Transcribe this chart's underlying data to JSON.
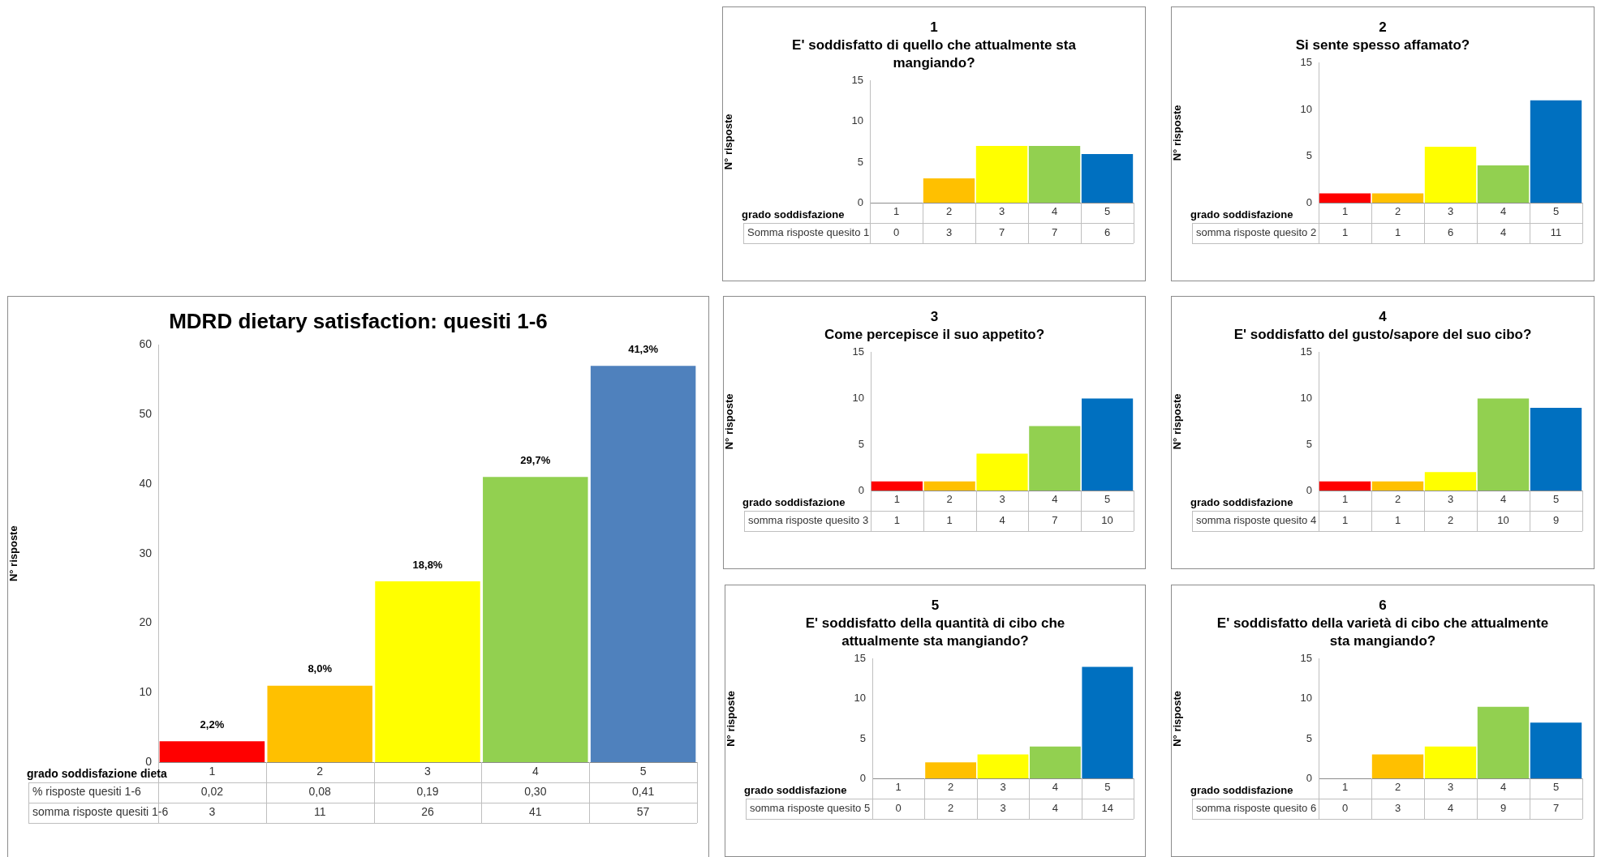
{
  "chart_data": [
    {
      "type": "bar",
      "title": "1",
      "subtitle": "E' soddisfatto di quello che attualmente sta mangiando?",
      "xlabel": "grado soddisfazione",
      "ylabel": "N° risposte",
      "categories": [
        "1",
        "2",
        "3",
        "4",
        "5"
      ],
      "colors": [
        "#ff0000",
        "#ffc000",
        "#ffff00",
        "#92d050",
        "#0070c0"
      ],
      "series": [
        {
          "name": "Somma risposte quesito 1",
          "values": [
            0,
            3,
            7,
            7,
            6
          ]
        }
      ],
      "ylim": [
        0,
        15
      ],
      "yticks": [
        0,
        5,
        10,
        15
      ],
      "data_labels": true
    },
    {
      "type": "bar",
      "title": "2",
      "subtitle": "Si sente spesso affamato?",
      "xlabel": "grado soddisfazione",
      "ylabel": "N° risposte",
      "categories": [
        "1",
        "2",
        "3",
        "4",
        "5"
      ],
      "colors": [
        "#ff0000",
        "#ffc000",
        "#ffff00",
        "#92d050",
        "#0070c0"
      ],
      "series": [
        {
          "name": "somma risposte quesito 2",
          "values": [
            1,
            1,
            6,
            4,
            11
          ]
        }
      ],
      "ylim": [
        0,
        15
      ],
      "yticks": [
        0,
        5,
        10,
        15
      ],
      "data_labels": true
    },
    {
      "type": "bar",
      "title": "MDRD dietary satisfaction: quesiti 1-6",
      "xlabel": "grado soddisfazione dieta",
      "ylabel": "N° risposte",
      "categories": [
        "1",
        "2",
        "3",
        "4",
        "5"
      ],
      "colors": [
        "#ff0000",
        "#ffc000",
        "#ffff00",
        "#92d050",
        "#4f81bd"
      ],
      "series": [
        {
          "name": "somma risposte quesiti 1-6",
          "values": [
            3,
            11,
            26,
            41,
            57
          ]
        }
      ],
      "ylim": [
        0,
        60
      ],
      "yticks": [
        0,
        10,
        20,
        30,
        40,
        50,
        60
      ],
      "data_labels": true,
      "annotations": [
        "% risposte quesiti 1-6",
        "0,02",
        "0,08",
        "0,19",
        "0,30",
        "0,41",
        {
          "text": "2,2%",
          "x": "1",
          "y": 3
        },
        {
          "text": "8,0%",
          "x": "2",
          "y": 11
        },
        {
          "text": "18,8%",
          "x": "3",
          "y": 26
        },
        {
          "text": "29,7%",
          "x": "4",
          "y": 41
        },
        {
          "text": "41,3%",
          "x": "5",
          "y": 57
        }
      ]
    },
    {
      "type": "bar",
      "title": "3",
      "subtitle": "Come percepisce il suo appetito?",
      "xlabel": "grado soddisfazione",
      "ylabel": "N° risposte",
      "categories": [
        "1",
        "2",
        "3",
        "4",
        "5"
      ],
      "colors": [
        "#ff0000",
        "#ffc000",
        "#ffff00",
        "#92d050",
        "#0070c0"
      ],
      "series": [
        {
          "name": "somma risposte quesito 3",
          "values": [
            1,
            1,
            4,
            7,
            10
          ]
        }
      ],
      "ylim": [
        0,
        15
      ],
      "yticks": [
        0,
        5,
        10,
        15
      ],
      "data_labels": true
    },
    {
      "type": "bar",
      "title": "4",
      "subtitle": "E' soddisfatto del gusto/sapore del suo cibo?",
      "xlabel": "grado soddisfazione",
      "ylabel": "N° risposte",
      "categories": [
        "1",
        "2",
        "3",
        "4",
        "5"
      ],
      "colors": [
        "#ff0000",
        "#ffc000",
        "#ffff00",
        "#92d050",
        "#0070c0"
      ],
      "series": [
        {
          "name": "somma risposte quesito 4",
          "values": [
            1,
            1,
            2,
            10,
            9
          ]
        }
      ],
      "ylim": [
        0,
        15
      ],
      "yticks": [
        0,
        5,
        10,
        15
      ],
      "data_labels": true
    },
    {
      "type": "bar",
      "title": "5",
      "subtitle": "E' soddisfatto della quantità di cibo che attualmente sta mangiando?",
      "xlabel": "grado soddisfazione",
      "ylabel": "N° risposte",
      "categories": [
        "1",
        "2",
        "3",
        "4",
        "5"
      ],
      "colors": [
        "#ff0000",
        "#ffc000",
        "#ffff00",
        "#92d050",
        "#0070c0"
      ],
      "series": [
        {
          "name": "somma risposte quesito 5",
          "values": [
            0,
            2,
            3,
            4,
            14
          ]
        }
      ],
      "ylim": [
        0,
        15
      ],
      "yticks": [
        0,
        5,
        10,
        15
      ],
      "data_labels": true
    },
    {
      "type": "bar",
      "title": "6",
      "subtitle": "E' soddisfatto della varietà di cibo che attualmente sta mangiando?",
      "xlabel": "grado soddisfazione",
      "ylabel": "N° risposte",
      "categories": [
        "1",
        "2",
        "3",
        "4",
        "5"
      ],
      "colors": [
        "#ff0000",
        "#ffc000",
        "#ffff00",
        "#92d050",
        "#0070c0"
      ],
      "series": [
        {
          "name": "somma risposte quesito 6",
          "values": [
            0,
            3,
            4,
            9,
            7
          ]
        }
      ],
      "ylim": [
        0,
        15
      ],
      "yticks": [
        0,
        5,
        10,
        15
      ],
      "data_labels": true
    }
  ]
}
